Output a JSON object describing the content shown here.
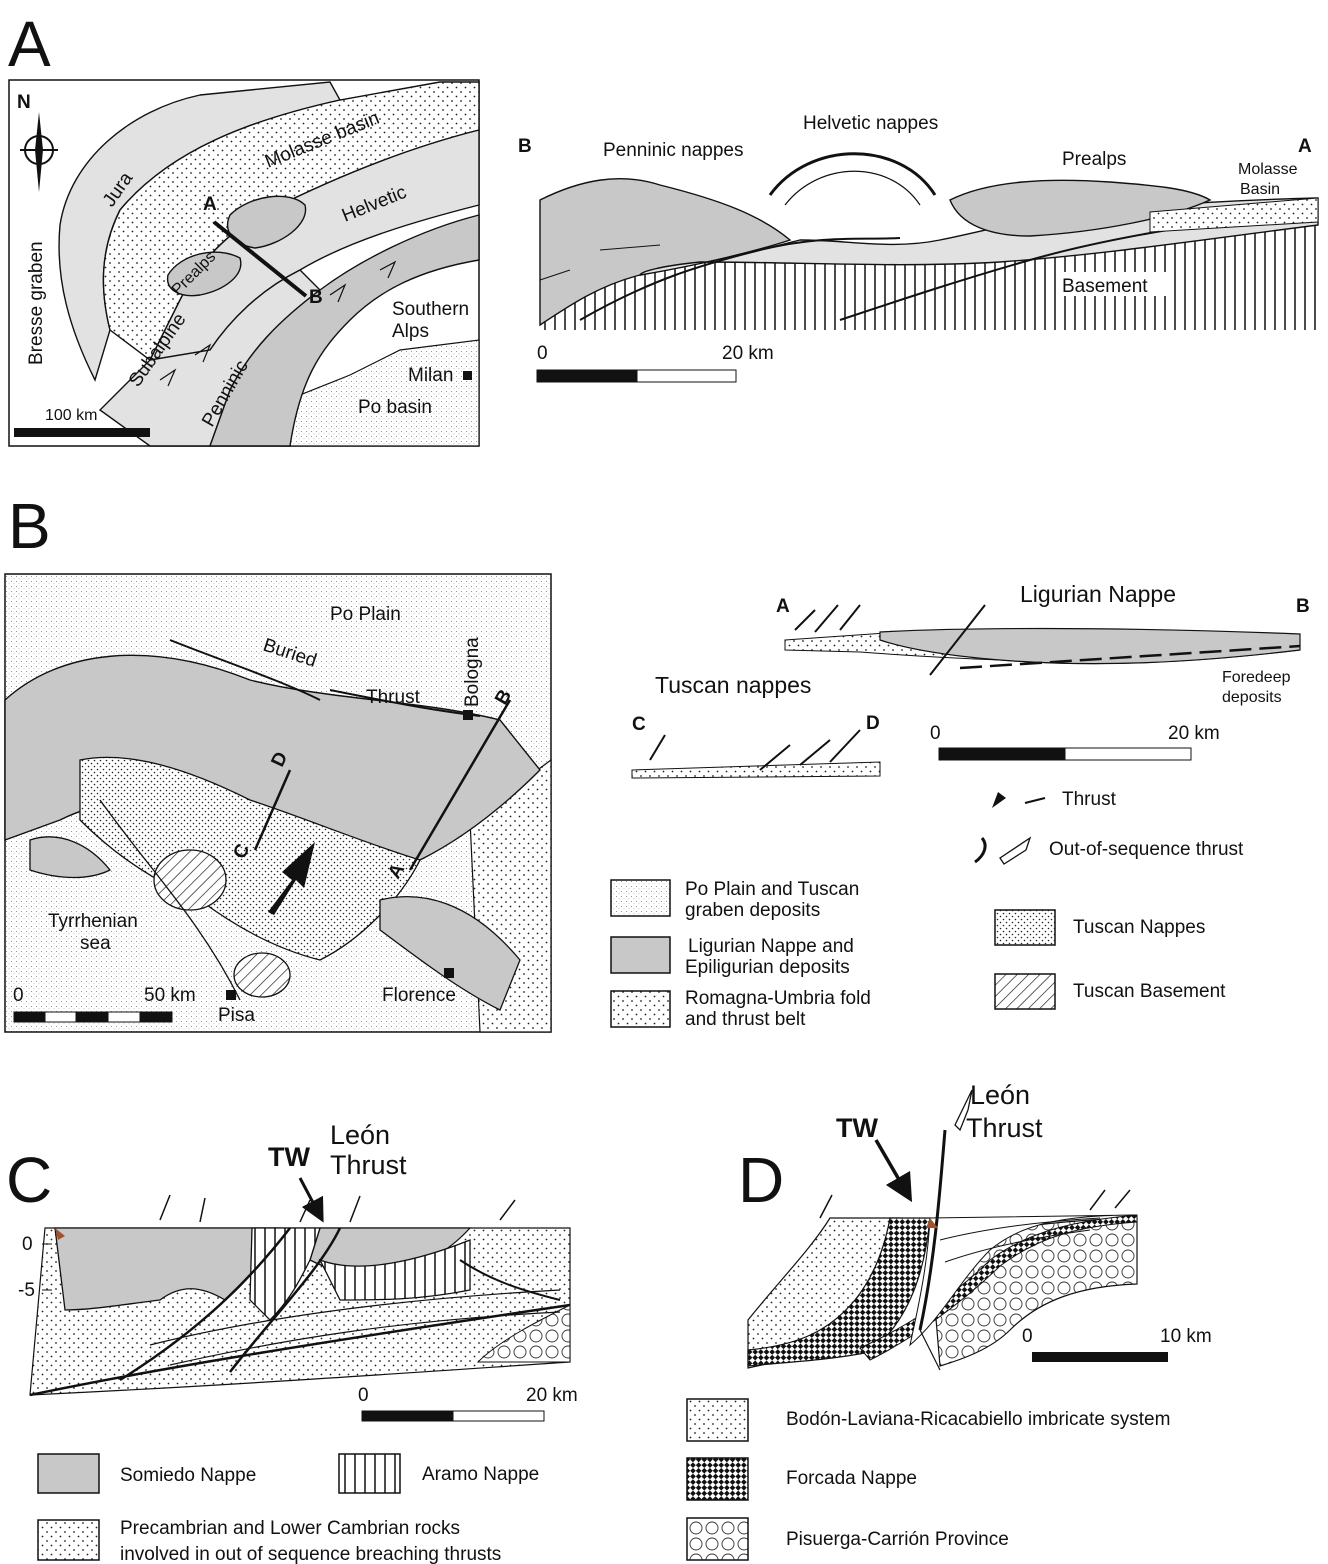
{
  "panelA": {
    "letter": "A",
    "map": {
      "north": "N",
      "labels": {
        "jura": "Jura",
        "molasse": "Molasse basin",
        "helvetic": "Helvetic",
        "prealps": "Prealps",
        "subalpine": "Subalpine",
        "penninic": "Penninic",
        "bresse": "Bresse graben",
        "southern": "Southern Alps",
        "milan": "Milan",
        "po": "Po basin",
        "pointA": "A",
        "pointB": "B"
      },
      "scale": "100 km"
    },
    "section": {
      "endB": "B",
      "endA": "A",
      "penninic": "Penninic nappes",
      "helvetic": "Helvetic nappes",
      "prealps": "Prealps",
      "molasse": "Molasse Basin",
      "basement": "Basement",
      "scale0": "0",
      "scale20": "20 km"
    }
  },
  "panelB": {
    "letter": "B",
    "map": {
      "labels": {
        "po": "Po Plain",
        "buried": "Buried",
        "thrust": "Thrust",
        "bologna": "Bologna",
        "tyrrhenian": "Tyrrhenian sea",
        "pisa": "Pisa",
        "florence": "Florence",
        "pointA": "A",
        "pointB": "B",
        "pointC": "C",
        "pointD": "D"
      },
      "scale0": "0",
      "scale50": "50 km"
    },
    "sections": {
      "ab_a": "A",
      "ab_b": "B",
      "ligurian": "Ligurian Nappe",
      "foredeep": "Foredeep deposits",
      "tuscan": "Tuscan nappes",
      "cd_c": "C",
      "cd_d": "D",
      "scale0": "0",
      "scale20": "20 km"
    },
    "legend": {
      "thrust": "Thrust",
      "oos": "Out-of-sequence thrust",
      "po": "Po Plain and Tuscan graben deposits",
      "ligurian": "Ligurian Nappe and Epiligurian deposits",
      "romagna": "Romagna-Umbria fold and thrust belt",
      "tuscanNappes": "Tuscan Nappes",
      "tuscanBasement": "Tuscan Basement"
    }
  },
  "panelC": {
    "letter": "C",
    "tw": "TW",
    "leon": "León Thrust",
    "y0": "0",
    "y5": "-5",
    "scale0": "0",
    "scale20": "20 km",
    "legend": {
      "somiedo": "Somiedo Nappe",
      "aramo": "Aramo Nappe",
      "precambrian": "Precambrian and Lower Cambrian rocks involved in out of sequence breaching thrusts"
    }
  },
  "panelD": {
    "letter": "D",
    "tw": "TW",
    "leon": "León Thrust",
    "scale0": "0",
    "scale10": "10 km",
    "legend": {
      "bodon": "Bodón-Laviana-Ricacabiello imbricate system",
      "forcada": "Forcada Nappe",
      "pisuerga": "Pisuerga-Carrión Province"
    }
  },
  "colors": {
    "gray": "#c8c8c8",
    "ink": "#111111",
    "brown": "#a0522d"
  }
}
